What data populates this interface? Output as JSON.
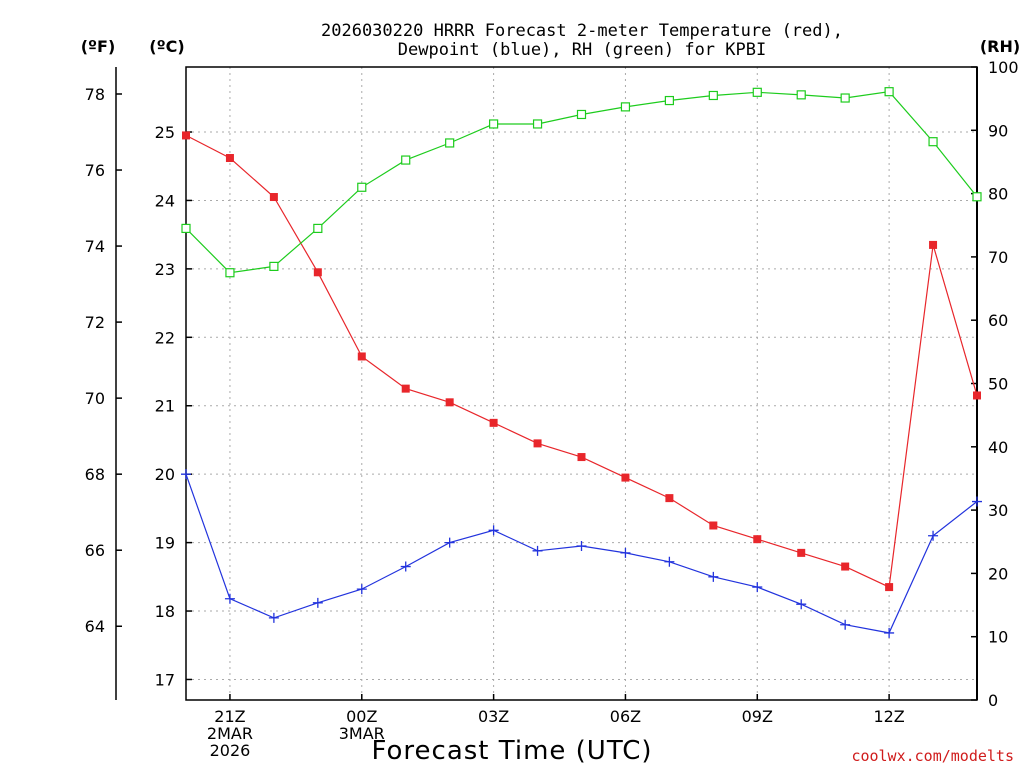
{
  "chart_data": {
    "type": "line",
    "title": [
      "2026030220 HRRR Forecast 2-meter Temperature (red),",
      "Dewpoint (blue), RH (green) for KPBI"
    ],
    "xlabel": "Forecast Time (UTC)",
    "unit_labels": {
      "fahrenheit": "(ºF)",
      "celsius": "(ºC)",
      "rh": "(RH)"
    },
    "watermark": "coolwx.com/modelts",
    "x_hours": [
      20,
      21,
      22,
      23,
      24,
      25,
      26,
      27,
      28,
      29,
      30,
      31,
      32,
      33,
      34,
      35,
      36,
      37,
      38
    ],
    "xlim": [
      20,
      38
    ],
    "x_ticks": [
      {
        "hour": 21,
        "lines": [
          "21Z",
          "2MAR",
          "2026"
        ]
      },
      {
        "hour": 24,
        "lines": [
          "00Z",
          "3MAR"
        ]
      },
      {
        "hour": 27,
        "lines": [
          "03Z"
        ]
      },
      {
        "hour": 30,
        "lines": [
          "06Z"
        ]
      },
      {
        "hour": 33,
        "lines": [
          "09Z"
        ]
      },
      {
        "hour": 36,
        "lines": [
          "12Z"
        ]
      }
    ],
    "celsius_axis": {
      "ylim": [
        16.7,
        25.95
      ],
      "ticks": [
        17,
        18,
        19,
        20,
        21,
        22,
        23,
        24,
        25
      ]
    },
    "fahrenheit_axis": {
      "ticks": [
        64,
        66,
        68,
        70,
        72,
        74,
        76,
        78
      ]
    },
    "rh_axis": {
      "ylim": [
        0,
        100
      ],
      "ticks": [
        0,
        10,
        20,
        30,
        40,
        50,
        60,
        70,
        80,
        90,
        100
      ]
    },
    "series": [
      {
        "name": "Temperature",
        "units": "C",
        "color": "#e8262b",
        "marker": "filled-square",
        "values": [
          24.95,
          24.62,
          24.05,
          22.95,
          21.72,
          21.25,
          21.05,
          20.75,
          20.45,
          20.25,
          19.95,
          19.65,
          19.25,
          19.05,
          18.85,
          18.65,
          18.35,
          23.35,
          21.15
        ]
      },
      {
        "name": "Dewpoint",
        "units": "C",
        "color": "#2233dd",
        "marker": "plus",
        "values": [
          20.0,
          18.18,
          17.9,
          18.12,
          18.32,
          18.65,
          19.0,
          19.18,
          18.88,
          18.95,
          18.85,
          18.72,
          18.5,
          18.35,
          18.1,
          17.8,
          17.68,
          19.1,
          19.6
        ]
      },
      {
        "name": "RH",
        "units": "%",
        "color": "#1dcc1d",
        "marker": "open-square",
        "values": [
          74.5,
          67.5,
          68.5,
          74.5,
          81,
          85.3,
          88,
          91,
          91,
          92.5,
          93.7,
          94.7,
          95.5,
          96,
          95.6,
          95.1,
          96.1,
          88.2,
          79.5
        ]
      }
    ]
  }
}
